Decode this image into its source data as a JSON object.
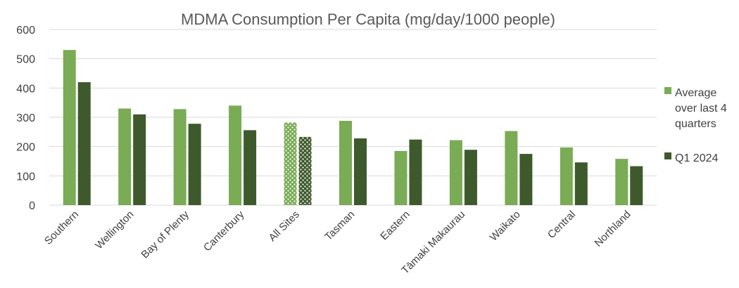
{
  "chart_data": {
    "type": "bar",
    "title": "MDMA Consumption Per Capita (mg/day/1000 people)",
    "xlabel": "",
    "ylabel": "",
    "ylim": [
      0,
      600
    ],
    "yticks": [
      0,
      100,
      200,
      300,
      400,
      500,
      600
    ],
    "grid": true,
    "legend_position": "right",
    "categories": [
      "Southern",
      "Wellington",
      "Bay of Plenty",
      "Canterbury",
      "All Sites",
      "Tasman",
      "Eastern",
      "Tāmaki Makaurau",
      "Waikato",
      "Central",
      "Northland"
    ],
    "highlighted_category": "All Sites",
    "series": [
      {
        "name": "Average over last 4 quarters",
        "legend_lines": [
          "Average",
          "over last 4",
          "quarters"
        ],
        "color": "#7aab55",
        "values": [
          530,
          330,
          328,
          340,
          282,
          288,
          185,
          222,
          253,
          197,
          158
        ]
      },
      {
        "name": "Q1 2024",
        "legend_lines": [
          "Q1 2024"
        ],
        "color": "#3e5a2c",
        "values": [
          420,
          310,
          278,
          256,
          233,
          228,
          224,
          189,
          175,
          146,
          133
        ]
      }
    ]
  }
}
